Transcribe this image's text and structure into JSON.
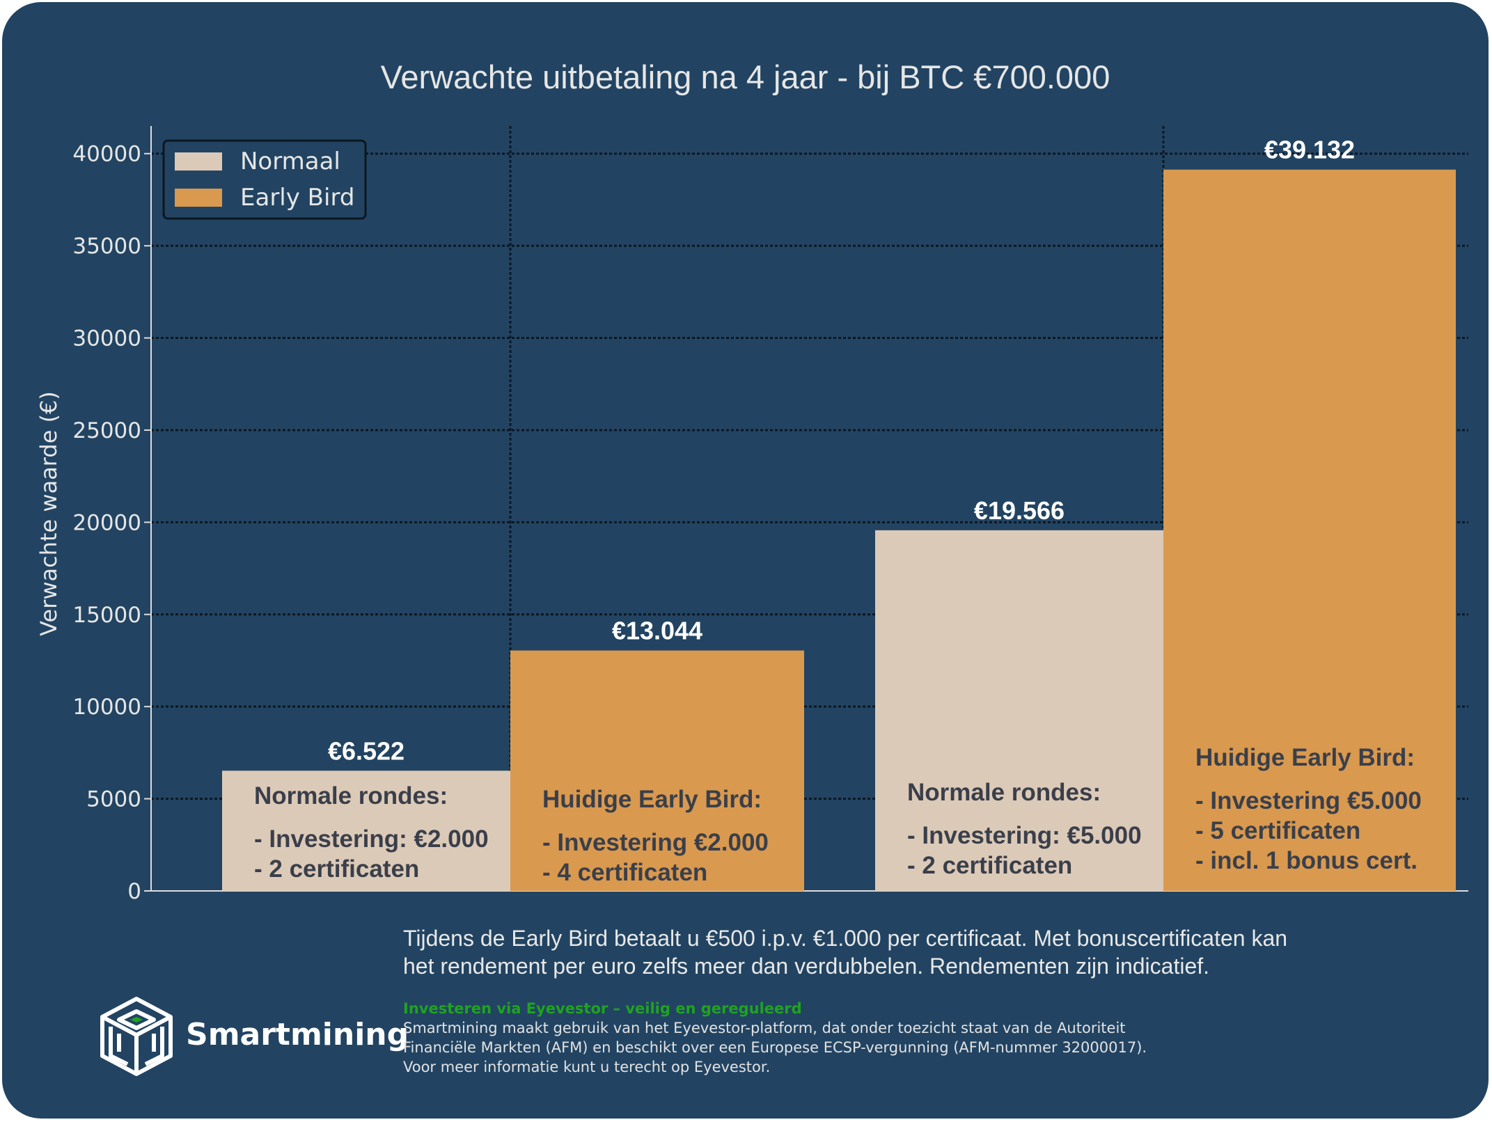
{
  "chart_data": {
    "type": "bar",
    "title": "Verwachte uitbetaling na 4 jaar - bij BTC €700.000",
    "ylabel": "Verwachte waarde (€)",
    "xlabel": "",
    "ylim": [
      0,
      41500
    ],
    "yticks": [
      0,
      5000,
      10000,
      15000,
      20000,
      25000,
      30000,
      35000,
      40000
    ],
    "grid": true,
    "legend_position": "top-left",
    "series": [
      {
        "name": "Normaal",
        "color": "#dccab8"
      },
      {
        "name": "Early Bird",
        "color": "#d9994f"
      }
    ],
    "bars": [
      {
        "series": "Normaal",
        "value": 6522,
        "value_label": "€6.522",
        "heading": "Normale rondes:",
        "lines": [
          "- Investering: €2.000",
          "- 2 certificaten"
        ]
      },
      {
        "series": "Early Bird",
        "value": 13044,
        "value_label": "€13.044",
        "heading": "Huidige Early Bird:",
        "lines": [
          "- Investering €2.000",
          "- 4 certificaten"
        ]
      },
      {
        "series": "Normaal",
        "value": 19566,
        "value_label": "€19.566",
        "heading": "Normale rondes:",
        "lines": [
          "- Investering: €5.000",
          "- 2 certificaten"
        ]
      },
      {
        "series": "Early Bird",
        "value": 39132,
        "value_label": "€39.132",
        "heading": "Huidige Early Bird:",
        "lines": [
          "- Investering €5.000",
          "- 5 certificaten",
          "- incl. 1 bonus cert."
        ]
      }
    ]
  },
  "footnote": {
    "line1": "Tijdens de Early Bird betaalt u €500 i.p.v. €1.000 per certificaat. Met bonuscertificaten kan",
    "line2": "het rendement per euro zelfs meer dan verdubbelen. Rendementen zijn indicatief."
  },
  "brand": {
    "name": "Smartmining",
    "icon": "cube-logo-icon"
  },
  "disclaimer": {
    "heading": "Investeren via Eyevestor – veilig en gereguleerd",
    "line1": "Smartmining maakt gebruik van het Eyevestor-platform, dat onder toezicht staat van de Autoriteit",
    "line2": "Financiële Markten (AFM) en beschikt over een Europese ECSP-vergunning (AFM-nummer 32000017).",
    "line3": "Voor meer informatie kunt u terecht op Eyevestor."
  },
  "colors": {
    "background": "#224462",
    "normaal": "#dccab8",
    "early_bird": "#d9994f",
    "text": "#e6e6e6",
    "bar_text": "#3a3f4a",
    "disclaimer_heading": "#1fa31f"
  }
}
